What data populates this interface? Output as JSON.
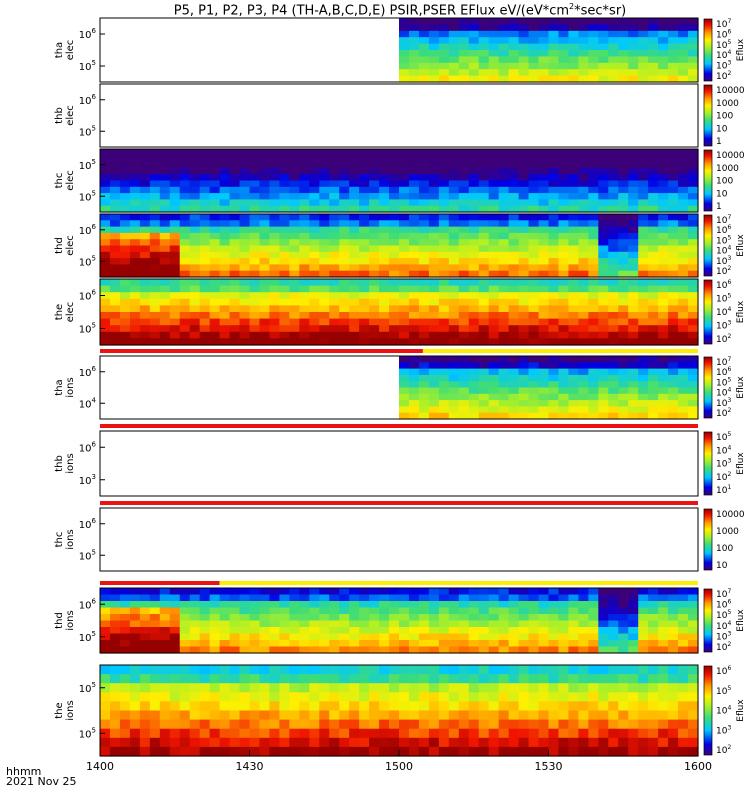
{
  "title": "P5, P1, P2, P3, P4 (TH-A,B,C,D,E) PSIR,PSER EFlux eV/(eV*cm",
  "title_sup": "2",
  "title_tail": "*sec*sr)",
  "footer": {
    "time_label": "hhmm",
    "date_label": "2021 Nov 25"
  },
  "colorbar_label": "Eflux",
  "chart_data": {
    "type": "heatmap",
    "title": "P5, P1, P2, P3, P4 (TH-A,B,C,D,E) PSIR,PSER EFlux eV/(eV*cm2*sec*sr)",
    "x_axis": {
      "label": "hhmm",
      "date": "2021 Nov 25",
      "range": [
        "1400",
        "1600"
      ],
      "ticks": [
        "1400",
        "1430",
        "1500",
        "1530",
        "1600"
      ]
    },
    "panels": [
      {
        "probe": "tha",
        "species": "elec",
        "ylabel": [
          "tha",
          "elec"
        ],
        "ytick_exps": [
          6,
          5
        ],
        "data_start": 0.5,
        "high": 0.45,
        "cbar_labels": [
          "10^7",
          "10^6",
          "10^5",
          "10^4",
          "10^3",
          "10^2"
        ],
        "cbar_title": "Eflux"
      },
      {
        "probe": "thb",
        "species": "elec",
        "ylabel": [
          "thb",
          "elec"
        ],
        "ytick_exps": [
          6,
          5
        ],
        "data_start": null,
        "cbar_labels": [
          "10000",
          "1000",
          "100",
          "10",
          "1"
        ],
        "cbar_title": ""
      },
      {
        "probe": "thc",
        "species": "elec",
        "ylabel": [
          "thc",
          "elec"
        ],
        "ytick_exps": [
          5,
          5
        ],
        "data_start": 0.0,
        "high": 0.18,
        "cbar_labels": [
          "10000",
          "1000",
          "100",
          "10",
          "1"
        ],
        "cbar_title": ""
      },
      {
        "probe": "thd",
        "species": "elec",
        "ylabel": [
          "thd",
          "elec"
        ],
        "ytick_exps": [
          6,
          5
        ],
        "data_start": 0.0,
        "high": 0.62,
        "cbar_labels": [
          "10^7",
          "10^6",
          "10^5",
          "10^4",
          "10^3",
          "10^2"
        ],
        "cbar_title": "Eflux"
      },
      {
        "probe": "the",
        "species": "elec",
        "ylabel": [
          "the",
          "elec"
        ],
        "ytick_exps": [
          6,
          5
        ],
        "data_start": 0.0,
        "high": 0.85,
        "cbar_labels": [
          "10^6",
          "10^5",
          "10^4",
          "10^3",
          "10^2"
        ],
        "cbar_title": "Eflux"
      },
      {
        "probe": "tha",
        "species": "ions",
        "ylabel": [
          "tha",
          "ions"
        ],
        "ytick_exps": [
          6,
          4
        ],
        "data_start": 0.5,
        "high": 0.5,
        "cbar_labels": [
          "10^7",
          "10^6",
          "10^5",
          "10^4",
          "10^3",
          "10^2"
        ],
        "cbar_title": "Eflux"
      },
      {
        "probe": "thb",
        "species": "ions",
        "ylabel": [
          "thb",
          "ions"
        ],
        "ytick_exps": [
          6,
          3
        ],
        "data_start": null,
        "cbar_labels": [
          "10^5",
          "10^4",
          "10^3",
          "10^2",
          "10^1"
        ],
        "cbar_title": "Eflux"
      },
      {
        "probe": "thc",
        "species": "ions",
        "ylabel": [
          "thc",
          "ions"
        ],
        "ytick_exps": [
          6,
          5
        ],
        "data_start": null,
        "cbar_labels": [
          "10000",
          "1000",
          "100",
          "10"
        ],
        "cbar_title": ""
      },
      {
        "probe": "thd",
        "species": "ions",
        "ylabel": [
          "thd",
          "ions"
        ],
        "ytick_exps": [
          6,
          5
        ],
        "data_start": 0.0,
        "high": 0.6,
        "cbar_labels": [
          "10^7",
          "10^6",
          "10^5",
          "10^4",
          "10^3",
          "10^2"
        ],
        "cbar_title": "Eflux"
      },
      {
        "probe": "the",
        "species": "ions",
        "ylabel": [
          "the",
          "ions"
        ],
        "ytick_exps": [
          5,
          5
        ],
        "data_start": 0.0,
        "high": 0.8,
        "cbar_labels": [
          "10^6",
          "10^5",
          "10^4",
          "10^3",
          "10^2"
        ],
        "cbar_title": "Eflux"
      }
    ],
    "colorscale": "rainbow (purple-blue-cyan-green-yellow-orange-red-darkred)"
  }
}
